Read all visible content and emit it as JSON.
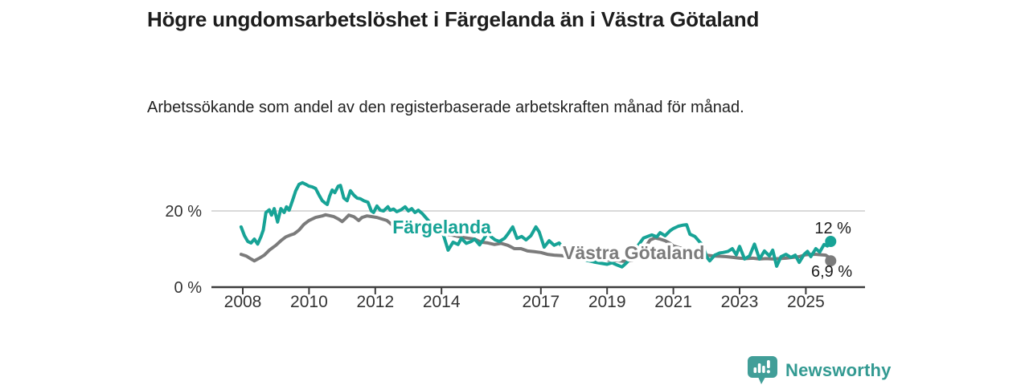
{
  "header": {
    "title": "Högre ungdomsarbetslöshet i Färgelanda än i Västra Götaland",
    "subtitle": "Arbetssökande som andel av den registerbaserade arbetskraften månad för månad."
  },
  "footer": {
    "brand": "Newsworthy"
  },
  "colors": {
    "fargelanda": "#17a396",
    "vastra_gotaland": "#7b7b7b",
    "brand": "#419e98",
    "axis": "#3c3c3c",
    "grid": "#d9d9d9",
    "label_text": "#1a1a1a"
  },
  "chart_data": {
    "type": "line",
    "title": "Högre ungdomsarbetslöshet i Färgelanda än i Västra Götaland",
    "subtitle": "Arbetssökande som andel av den registerbaserade arbetskraften månad för månad.",
    "unit": "%",
    "grid": "horizontal-20-only",
    "legend_position": "inline-labels",
    "x_axis": {
      "ticks": [
        2008,
        2010,
        2012,
        2014,
        2017,
        2019,
        2021,
        2023,
        2025
      ],
      "range": [
        2007.05,
        2026.8
      ]
    },
    "y_axis": {
      "ticks": [
        {
          "value": 20,
          "label": "20 %",
          "grid": true
        },
        {
          "value": 0,
          "label": "0 %",
          "grid": false
        }
      ],
      "range": [
        0,
        30
      ]
    },
    "series": [
      {
        "name": "Färgelanda",
        "color": "#17a396",
        "end_label": "12 %",
        "end_value": 12,
        "label": {
          "text": "Färgelanda",
          "year": 2012.52,
          "value": 14.1,
          "anchor": "start"
        },
        "end_label_pos": {
          "year": 2025.82,
          "value": 14.1
        },
        "points": [
          [
            2007.95,
            15.8
          ],
          [
            2008.05,
            13.5
          ],
          [
            2008.15,
            12.0
          ],
          [
            2008.25,
            11.6
          ],
          [
            2008.35,
            12.6
          ],
          [
            2008.45,
            11.3
          ],
          [
            2008.55,
            13.3
          ],
          [
            2008.62,
            15.0
          ],
          [
            2008.7,
            19.6
          ],
          [
            2008.8,
            20.3
          ],
          [
            2008.87,
            18.9
          ],
          [
            2008.95,
            20.6
          ],
          [
            2009.05,
            17.1
          ],
          [
            2009.15,
            20.6
          ],
          [
            2009.25,
            19.6
          ],
          [
            2009.32,
            21.1
          ],
          [
            2009.4,
            20.2
          ],
          [
            2009.5,
            22.7
          ],
          [
            2009.6,
            25.3
          ],
          [
            2009.7,
            27.0
          ],
          [
            2009.8,
            27.4
          ],
          [
            2009.9,
            27.0
          ],
          [
            2010.0,
            26.5
          ],
          [
            2010.1,
            26.3
          ],
          [
            2010.2,
            25.9
          ],
          [
            2010.3,
            24.2
          ],
          [
            2010.4,
            22.7
          ],
          [
            2010.48,
            22.1
          ],
          [
            2010.55,
            21.7
          ],
          [
            2010.62,
            23.8
          ],
          [
            2010.7,
            25.5
          ],
          [
            2010.78,
            24.8
          ],
          [
            2010.88,
            26.5
          ],
          [
            2010.95,
            26.7
          ],
          [
            2011.05,
            23.4
          ],
          [
            2011.15,
            22.7
          ],
          [
            2011.25,
            25.3
          ],
          [
            2011.35,
            24.2
          ],
          [
            2011.45,
            23.4
          ],
          [
            2011.55,
            23.2
          ],
          [
            2011.65,
            22.7
          ],
          [
            2011.78,
            22.3
          ],
          [
            2011.88,
            20.0
          ],
          [
            2011.95,
            19.6
          ],
          [
            2012.05,
            21.3
          ],
          [
            2012.15,
            20.2
          ],
          [
            2012.25,
            20.0
          ],
          [
            2012.38,
            21.1
          ],
          [
            2012.45,
            20.2
          ],
          [
            2012.55,
            20.5
          ],
          [
            2012.65,
            19.8
          ],
          [
            2012.78,
            20.3
          ],
          [
            2012.9,
            21.1
          ],
          [
            2013.0,
            20.0
          ],
          [
            2013.1,
            20.6
          ],
          [
            2013.2,
            19.6
          ],
          [
            2013.3,
            20.2
          ],
          [
            2013.42,
            19.3
          ],
          [
            2013.55,
            18.0
          ],
          [
            2013.7,
            16.5
          ],
          [
            2013.85,
            15.0
          ],
          [
            2014.0,
            14.2
          ],
          [
            2014.05,
            13.9
          ],
          [
            2014.2,
            9.7
          ],
          [
            2014.35,
            11.8
          ],
          [
            2014.5,
            11.2
          ],
          [
            2014.6,
            12.8
          ],
          [
            2014.75,
            11.5
          ],
          [
            2014.9,
            12.0
          ],
          [
            2015.0,
            12.6
          ],
          [
            2015.15,
            11.1
          ],
          [
            2015.3,
            13.0
          ],
          [
            2015.4,
            14.7
          ],
          [
            2015.5,
            13.2
          ],
          [
            2015.62,
            12.4
          ],
          [
            2015.75,
            12.0
          ],
          [
            2015.9,
            12.8
          ],
          [
            2016.0,
            13.9
          ],
          [
            2016.15,
            15.8
          ],
          [
            2016.28,
            12.8
          ],
          [
            2016.42,
            13.3
          ],
          [
            2016.55,
            12.4
          ],
          [
            2016.7,
            13.5
          ],
          [
            2016.85,
            15.8
          ],
          [
            2016.95,
            14.5
          ],
          [
            2017.1,
            10.5
          ],
          [
            2017.25,
            12.2
          ],
          [
            2017.4,
            11.0
          ],
          [
            2017.55,
            11.6
          ],
          [
            2017.7,
            10.0
          ],
          [
            2017.85,
            9.0
          ],
          [
            2018.0,
            8.2
          ],
          [
            2018.2,
            7.4
          ],
          [
            2018.4,
            7.0
          ],
          [
            2018.6,
            6.6
          ],
          [
            2018.8,
            6.3
          ],
          [
            2019.0,
            6.0
          ],
          [
            2019.15,
            6.4
          ],
          [
            2019.3,
            5.8
          ],
          [
            2019.45,
            5.3
          ],
          [
            2019.6,
            6.5
          ],
          [
            2019.75,
            8.0
          ],
          [
            2019.9,
            10.5
          ],
          [
            2020.1,
            12.9
          ],
          [
            2020.25,
            13.4
          ],
          [
            2020.35,
            13.7
          ],
          [
            2020.5,
            13.2
          ],
          [
            2020.6,
            14.3
          ],
          [
            2020.75,
            13.5
          ],
          [
            2020.9,
            14.8
          ],
          [
            2021.0,
            15.4
          ],
          [
            2021.15,
            16.0
          ],
          [
            2021.3,
            16.3
          ],
          [
            2021.4,
            16.4
          ],
          [
            2021.5,
            13.9
          ],
          [
            2021.65,
            13.3
          ],
          [
            2021.8,
            11.8
          ],
          [
            2021.9,
            11.0
          ],
          [
            2022.0,
            8.0
          ],
          [
            2022.1,
            6.9
          ],
          [
            2022.25,
            8.4
          ],
          [
            2022.4,
            9.0
          ],
          [
            2022.5,
            9.1
          ],
          [
            2022.65,
            9.4
          ],
          [
            2022.78,
            10.1
          ],
          [
            2022.9,
            8.5
          ],
          [
            2023.0,
            10.7
          ],
          [
            2023.15,
            7.4
          ],
          [
            2023.3,
            8.2
          ],
          [
            2023.45,
            11.3
          ],
          [
            2023.6,
            7.4
          ],
          [
            2023.75,
            9.5
          ],
          [
            2023.9,
            8.2
          ],
          [
            2024.0,
            9.7
          ],
          [
            2024.12,
            5.5
          ],
          [
            2024.25,
            8.0
          ],
          [
            2024.4,
            8.6
          ],
          [
            2024.55,
            7.8
          ],
          [
            2024.68,
            8.4
          ],
          [
            2024.8,
            6.5
          ],
          [
            2024.95,
            8.6
          ],
          [
            2025.05,
            9.4
          ],
          [
            2025.15,
            8.0
          ],
          [
            2025.3,
            10.1
          ],
          [
            2025.42,
            9.2
          ],
          [
            2025.55,
            11.2
          ],
          [
            2025.65,
            10.8
          ],
          [
            2025.75,
            12.0
          ]
        ]
      },
      {
        "name": "Västra Götaland",
        "color": "#7b7b7b",
        "end_label": "6,9 %",
        "end_value": 6.9,
        "label": {
          "text": "Västra Götaland",
          "year": 2017.66,
          "value": 7.4,
          "anchor": "start"
        },
        "end_label_pos": {
          "year": 2025.78,
          "value": 2.7
        },
        "points": [
          [
            2007.95,
            8.6
          ],
          [
            2008.1,
            8.2
          ],
          [
            2008.25,
            7.4
          ],
          [
            2008.35,
            6.9
          ],
          [
            2008.5,
            7.6
          ],
          [
            2008.65,
            8.4
          ],
          [
            2008.8,
            9.7
          ],
          [
            2009.0,
            11.0
          ],
          [
            2009.15,
            12.2
          ],
          [
            2009.3,
            13.2
          ],
          [
            2009.45,
            13.7
          ],
          [
            2009.55,
            14.0
          ],
          [
            2009.7,
            15.0
          ],
          [
            2009.85,
            16.5
          ],
          [
            2010.0,
            17.5
          ],
          [
            2010.2,
            18.3
          ],
          [
            2010.4,
            18.7
          ],
          [
            2010.5,
            19.0
          ],
          [
            2010.6,
            18.8
          ],
          [
            2010.75,
            18.5
          ],
          [
            2010.9,
            17.8
          ],
          [
            2011.0,
            17.2
          ],
          [
            2011.1,
            18.0
          ],
          [
            2011.2,
            18.9
          ],
          [
            2011.35,
            18.5
          ],
          [
            2011.5,
            17.5
          ],
          [
            2011.6,
            18.3
          ],
          [
            2011.75,
            18.7
          ],
          [
            2011.9,
            18.5
          ],
          [
            2012.05,
            18.3
          ],
          [
            2012.2,
            17.9
          ],
          [
            2012.35,
            17.5
          ],
          [
            2012.5,
            16.4
          ],
          [
            2012.6,
            15.4
          ],
          [
            2012.7,
            16.4
          ],
          [
            2012.85,
            16.2
          ],
          [
            2013.0,
            16.0
          ],
          [
            2013.2,
            15.5
          ],
          [
            2013.4,
            15.0
          ],
          [
            2013.6,
            14.6
          ],
          [
            2013.8,
            14.4
          ],
          [
            2014.0,
            14.3
          ],
          [
            2014.15,
            13.9
          ],
          [
            2014.3,
            13.7
          ],
          [
            2014.5,
            13.3
          ],
          [
            2014.7,
            13.0
          ],
          [
            2014.85,
            12.8
          ],
          [
            2015.0,
            12.6
          ],
          [
            2015.2,
            11.8
          ],
          [
            2015.4,
            11.6
          ],
          [
            2015.6,
            11.2
          ],
          [
            2015.8,
            11.5
          ],
          [
            2016.0,
            11.0
          ],
          [
            2016.2,
            10.1
          ],
          [
            2016.4,
            10.1
          ],
          [
            2016.6,
            9.5
          ],
          [
            2016.8,
            9.3
          ],
          [
            2017.0,
            9.1
          ],
          [
            2017.2,
            8.6
          ],
          [
            2017.4,
            8.4
          ],
          [
            2017.6,
            8.3
          ],
          [
            2017.8,
            8.1
          ],
          [
            2018.0,
            7.9
          ],
          [
            2018.25,
            7.6
          ],
          [
            2018.5,
            7.4
          ],
          [
            2018.75,
            7.2
          ],
          [
            2019.0,
            7.1
          ],
          [
            2019.25,
            7.0
          ],
          [
            2019.5,
            6.8
          ],
          [
            2019.75,
            7.0
          ],
          [
            2020.0,
            8.0
          ],
          [
            2020.15,
            10.5
          ],
          [
            2020.3,
            12.4
          ],
          [
            2020.45,
            12.9
          ],
          [
            2020.6,
            12.6
          ],
          [
            2020.75,
            12.2
          ],
          [
            2020.9,
            11.5
          ],
          [
            2021.0,
            10.8
          ],
          [
            2021.2,
            10.3
          ],
          [
            2021.4,
            10.1
          ],
          [
            2021.6,
            9.5
          ],
          [
            2021.8,
            8.8
          ],
          [
            2022.0,
            8.4
          ],
          [
            2022.2,
            8.2
          ],
          [
            2022.4,
            8.1
          ],
          [
            2022.6,
            8.0
          ],
          [
            2022.8,
            7.8
          ],
          [
            2023.0,
            7.6
          ],
          [
            2023.2,
            7.5
          ],
          [
            2023.4,
            7.6
          ],
          [
            2023.6,
            7.4
          ],
          [
            2023.8,
            7.5
          ],
          [
            2024.0,
            7.4
          ],
          [
            2024.2,
            7.5
          ],
          [
            2024.4,
            7.6
          ],
          [
            2024.6,
            7.8
          ],
          [
            2024.8,
            8.0
          ],
          [
            2025.0,
            8.5
          ],
          [
            2025.15,
            8.6
          ],
          [
            2025.3,
            8.6
          ],
          [
            2025.45,
            8.5
          ],
          [
            2025.6,
            8.4
          ],
          [
            2025.7,
            7.8
          ],
          [
            2025.75,
            6.9
          ]
        ]
      }
    ]
  }
}
